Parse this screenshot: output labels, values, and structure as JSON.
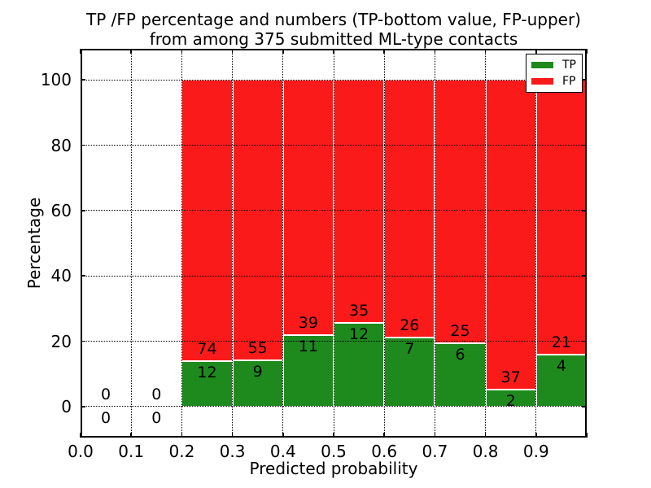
{
  "figure": {
    "title_line1": "TP /FP percentage and numbers (TP-bottom value, FP-upper)",
    "title_line2": "from among 375 submitted ML-type contacts"
  },
  "chart_data": {
    "type": "bar",
    "subtype": "stacked-percentage-histogram",
    "title": "TP /FP percentage and numbers (TP-bottom value, FP-upper) from among 375 submitted ML-type contacts",
    "xlabel": "Predicted probability",
    "ylabel": "Percentage",
    "xlim": [
      0.0,
      1.0
    ],
    "ylim": [
      -9.5,
      109.5
    ],
    "grid": true,
    "grid_style": "dotted",
    "xtick_labels": [
      "0.0",
      "0.1",
      "0.2",
      "0.3",
      "0.4",
      "0.5",
      "0.6",
      "0.7",
      "0.8",
      "0.9"
    ],
    "xtick_values": [
      0.0,
      0.1,
      0.2,
      0.3,
      0.4,
      0.5,
      0.6,
      0.7,
      0.8,
      0.9
    ],
    "ytick_values": [
      0,
      20,
      40,
      60,
      80,
      100
    ],
    "bin_width": 0.1,
    "total_contacts": 375,
    "legend": {
      "position": "upper-right",
      "items": [
        {
          "label": "TP",
          "color": "#1e8a1e"
        },
        {
          "label": "FP",
          "color": "#fb1a1a"
        }
      ]
    },
    "series_colors": {
      "tp": "#1e8a1e",
      "fp": "#fb1a1a",
      "bar_edge": "#ffffff"
    },
    "bins": [
      {
        "x_start": 0.0,
        "tp": 0,
        "fp": 0
      },
      {
        "x_start": 0.1,
        "tp": 0,
        "fp": 0
      },
      {
        "x_start": 0.2,
        "tp": 12,
        "fp": 74
      },
      {
        "x_start": 0.3,
        "tp": 9,
        "fp": 55
      },
      {
        "x_start": 0.4,
        "tp": 11,
        "fp": 39
      },
      {
        "x_start": 0.5,
        "tp": 12,
        "fp": 35
      },
      {
        "x_start": 0.6,
        "tp": 7,
        "fp": 26
      },
      {
        "x_start": 0.7,
        "tp": 6,
        "fp": 25
      },
      {
        "x_start": 0.8,
        "tp": 2,
        "fp": 37
      },
      {
        "x_start": 0.9,
        "tp": 4,
        "fp": 21
      }
    ]
  }
}
